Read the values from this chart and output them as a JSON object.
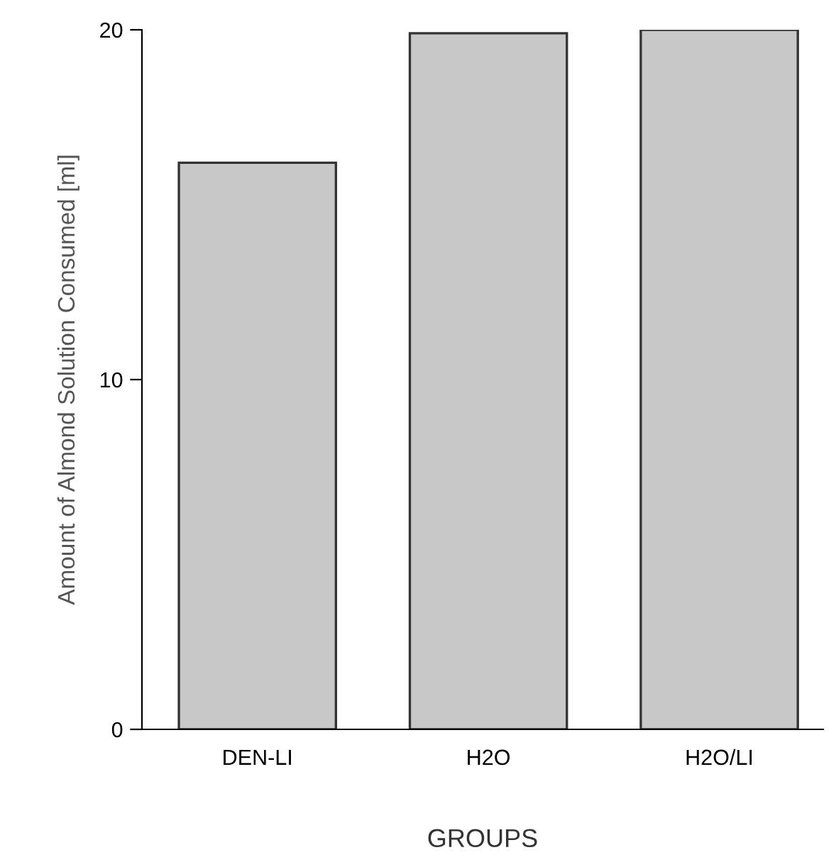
{
  "chart_data": {
    "type": "bar",
    "xlabel": "GROUPS",
    "ylabel": "Amount of Almond Solution Consumed [ml]",
    "categories": [
      "DEN-LI",
      "H2O",
      "H2O/LI"
    ],
    "values": [
      16.2,
      19.9,
      20.0
    ],
    "color": "#c8c8c8",
    "ylim": [
      0,
      20
    ],
    "yticks": [
      0,
      10,
      20
    ],
    "grid": false
  }
}
